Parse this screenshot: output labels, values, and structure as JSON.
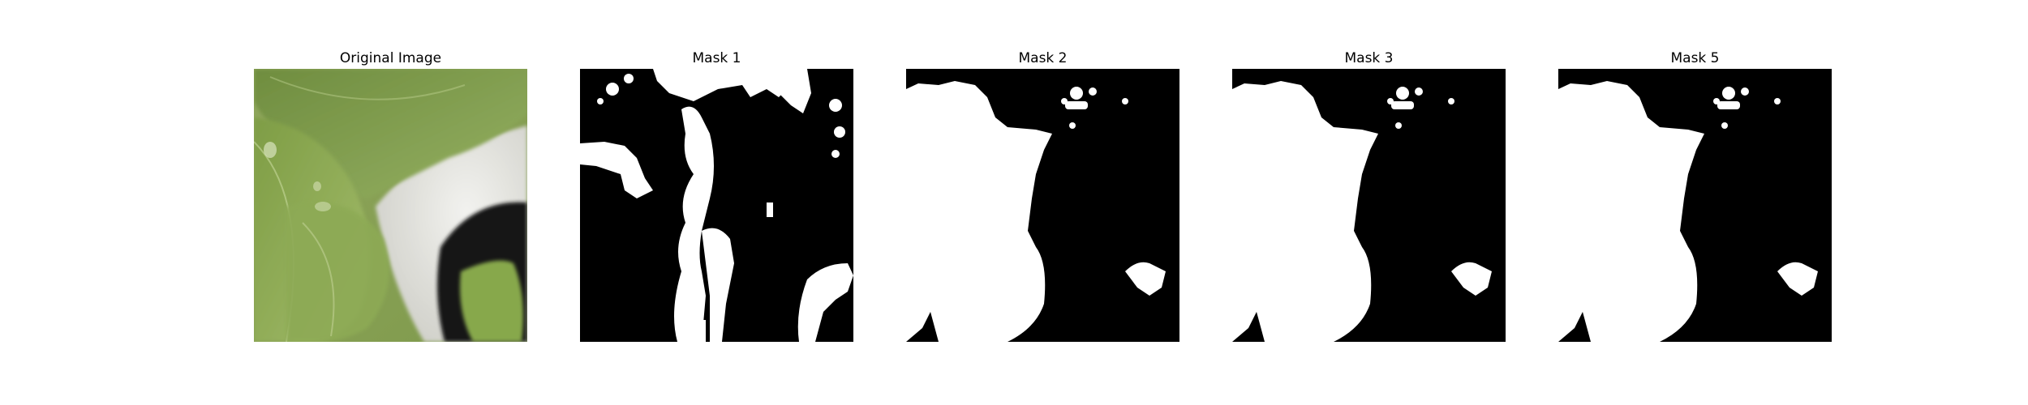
{
  "panels": [
    {
      "id": "original",
      "title": "Original Image",
      "content": "photo of green leaves near a white pot rim and dark pot interior"
    },
    {
      "id": "mask1",
      "title": "Mask 1",
      "content": "binary segmentation mask"
    },
    {
      "id": "mask2",
      "title": "Mask 2",
      "content": "binary segmentation mask"
    },
    {
      "id": "mask3",
      "title": "Mask 3",
      "content": "binary segmentation mask"
    },
    {
      "id": "mask5",
      "title": "Mask 5",
      "content": "binary segmentation mask"
    }
  ],
  "colors": {
    "mask_foreground": "#ffffff",
    "mask_background": "#000000",
    "leaf_dark": "#5f7f36",
    "leaf_light": "#9bb56a",
    "pot_white": "#e6e6e2",
    "pot_black": "#141414"
  }
}
